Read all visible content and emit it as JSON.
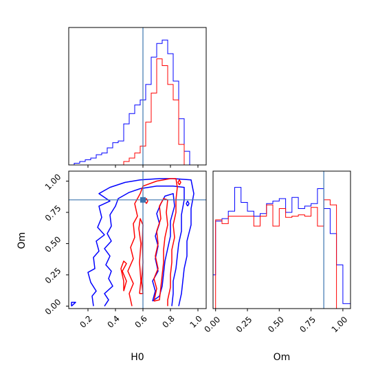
{
  "chart_data": {
    "type": "corner",
    "colors": {
      "blue": "#0000ff",
      "red": "#ff0000",
      "truth": "#3b75af"
    },
    "truth": {
      "H0": 0.6,
      "Om": 0.85
    },
    "panels": [
      {
        "name": "hist-H0",
        "type": "histogram",
        "xlim": [
          0.06,
          1.06
        ],
        "bin_edges": [
          0.06,
          0.1,
          0.14,
          0.18,
          0.22,
          0.26,
          0.3,
          0.34,
          0.38,
          0.42,
          0.46,
          0.5,
          0.54,
          0.58,
          0.62,
          0.66,
          0.7,
          0.74,
          0.78,
          0.82,
          0.86,
          0.9,
          0.94
        ],
        "series": [
          {
            "color": "blue",
            "values": [
              0,
              1,
              2,
              3,
              4,
              6,
              7,
              10,
              13,
              14,
              24,
              30,
              35,
              38,
              47,
              63,
              71,
              73,
              65,
              49,
              27,
              8
            ]
          },
          {
            "color": "red",
            "values": [
              0,
              0,
              0,
              0,
              0,
              0,
              0,
              0,
              0,
              0,
              2,
              4,
              7,
              11,
              25,
              42,
              62,
              58,
              47,
              38,
              12,
              0
            ]
          }
        ]
      },
      {
        "name": "contour-H0-Om",
        "type": "contour",
        "xlabel": "H0",
        "ylabel": "Om",
        "xlim": [
          0.06,
          1.06
        ],
        "ylim": [
          -0.02,
          1.08
        ],
        "xticks": [
          "0.2",
          "0.4",
          "0.6",
          "0.8",
          "1.0"
        ],
        "xtick_values": [
          0.2,
          0.4,
          0.6,
          0.8,
          1.0
        ],
        "yticks": [
          "0.00",
          "0.25",
          "0.50",
          "0.75",
          "1.00"
        ],
        "ytick_values": [
          0.0,
          0.25,
          0.5,
          0.75,
          1.0
        ],
        "contours": [
          {
            "color": "blue",
            "points": [
              [
                0.08,
                0.0
              ],
              [
                0.11,
                0.03
              ],
              [
                0.08,
                0.03
              ],
              [
                0.08,
                0.0
              ]
            ]
          },
          {
            "color": "blue",
            "points": [
              [
                0.24,
                0.0
              ],
              [
                0.23,
                0.08
              ],
              [
                0.26,
                0.12
              ],
              [
                0.22,
                0.19
              ],
              [
                0.2,
                0.27
              ],
              [
                0.25,
                0.3
              ],
              [
                0.24,
                0.39
              ],
              [
                0.28,
                0.44
              ],
              [
                0.26,
                0.52
              ],
              [
                0.32,
                0.57
              ],
              [
                0.27,
                0.63
              ],
              [
                0.3,
                0.71
              ],
              [
                0.28,
                0.8
              ],
              [
                0.36,
                0.84
              ],
              [
                0.28,
                0.9
              ],
              [
                0.36,
                0.95
              ],
              [
                0.47,
                0.99
              ],
              [
                0.58,
                1.01
              ],
              [
                0.72,
                1.02
              ],
              [
                0.82,
                1.02
              ],
              [
                0.95,
                1.01
              ],
              [
                0.97,
                0.9
              ],
              [
                0.95,
                0.78
              ],
              [
                0.95,
                0.65
              ],
              [
                0.92,
                0.52
              ],
              [
                0.92,
                0.4
              ],
              [
                0.9,
                0.3
              ],
              [
                0.89,
                0.2
              ],
              [
                0.88,
                0.1
              ],
              [
                0.86,
                0.0
              ]
            ]
          },
          {
            "color": "blue",
            "points": [
              [
                0.32,
                0.0
              ],
              [
                0.35,
                0.05
              ],
              [
                0.32,
                0.1
              ],
              [
                0.38,
                0.16
              ],
              [
                0.35,
                0.22
              ],
              [
                0.37,
                0.28
              ],
              [
                0.33,
                0.33
              ],
              [
                0.36,
                0.4
              ],
              [
                0.32,
                0.46
              ],
              [
                0.37,
                0.52
              ],
              [
                0.34,
                0.58
              ],
              [
                0.37,
                0.64
              ],
              [
                0.36,
                0.73
              ],
              [
                0.4,
                0.8
              ],
              [
                0.42,
                0.86
              ],
              [
                0.5,
                0.91
              ],
              [
                0.58,
                0.94
              ],
              [
                0.7,
                0.96
              ],
              [
                0.82,
                0.96
              ],
              [
                0.9,
                0.95
              ],
              [
                0.9,
                0.85
              ],
              [
                0.88,
                0.73
              ],
              [
                0.88,
                0.6
              ],
              [
                0.86,
                0.5
              ],
              [
                0.85,
                0.4
              ],
              [
                0.84,
                0.3
              ],
              [
                0.82,
                0.2
              ],
              [
                0.82,
                0.1
              ],
              [
                0.81,
                0.0
              ]
            ]
          },
          {
            "color": "blue",
            "points": [
              [
                0.67,
                0.04
              ],
              [
                0.69,
                0.12
              ],
              [
                0.67,
                0.2
              ],
              [
                0.71,
                0.28
              ],
              [
                0.69,
                0.38
              ],
              [
                0.71,
                0.48
              ],
              [
                0.69,
                0.56
              ],
              [
                0.72,
                0.66
              ],
              [
                0.7,
                0.74
              ],
              [
                0.73,
                0.82
              ],
              [
                0.76,
                0.88
              ],
              [
                0.82,
                0.9
              ],
              [
                0.83,
                0.8
              ],
              [
                0.8,
                0.68
              ],
              [
                0.8,
                0.56
              ],
              [
                0.78,
                0.46
              ],
              [
                0.76,
                0.36
              ],
              [
                0.75,
                0.26
              ],
              [
                0.74,
                0.16
              ],
              [
                0.72,
                0.08
              ],
              [
                0.67,
                0.04
              ]
            ]
          },
          {
            "color": "blue",
            "points": [
              [
                0.925,
                0.8
              ],
              [
                0.935,
                0.82
              ],
              [
                0.925,
                0.84
              ],
              [
                0.915,
                0.82
              ],
              [
                0.925,
                0.8
              ]
            ]
          },
          {
            "color": "red",
            "points": [
              [
                0.52,
                0.0
              ],
              [
                0.5,
                0.1
              ],
              [
                0.53,
                0.18
              ],
              [
                0.49,
                0.28
              ],
              [
                0.53,
                0.38
              ],
              [
                0.51,
                0.47
              ],
              [
                0.54,
                0.55
              ],
              [
                0.53,
                0.66
              ],
              [
                0.56,
                0.72
              ],
              [
                0.54,
                0.82
              ],
              [
                0.58,
                0.9
              ],
              [
                0.6,
                0.96
              ],
              [
                0.7,
                1.0
              ],
              [
                0.8,
                1.02
              ],
              [
                0.84,
                1.02
              ],
              [
                0.85,
                0.95
              ],
              [
                0.84,
                0.85
              ],
              [
                0.84,
                0.75
              ],
              [
                0.82,
                0.65
              ],
              [
                0.83,
                0.55
              ],
              [
                0.81,
                0.45
              ],
              [
                0.81,
                0.35
              ],
              [
                0.8,
                0.25
              ],
              [
                0.8,
                0.15
              ],
              [
                0.78,
                0.05
              ],
              [
                0.78,
                0.0
              ]
            ]
          },
          {
            "color": "red",
            "points": [
              [
                0.46,
                0.12
              ],
              [
                0.48,
                0.2
              ],
              [
                0.45,
                0.28
              ],
              [
                0.48,
                0.34
              ],
              [
                0.46,
                0.36
              ],
              [
                0.44,
                0.3
              ],
              [
                0.46,
                0.2
              ],
              [
                0.46,
                0.12
              ]
            ]
          },
          {
            "color": "red",
            "points": [
              [
                0.68,
                0.04
              ],
              [
                0.7,
                0.14
              ],
              [
                0.68,
                0.22
              ],
              [
                0.71,
                0.3
              ],
              [
                0.69,
                0.4
              ],
              [
                0.71,
                0.5
              ],
              [
                0.7,
                0.6
              ],
              [
                0.73,
                0.7
              ],
              [
                0.72,
                0.8
              ],
              [
                0.75,
                0.86
              ],
              [
                0.78,
                0.85
              ],
              [
                0.77,
                0.75
              ],
              [
                0.78,
                0.65
              ],
              [
                0.76,
                0.55
              ],
              [
                0.75,
                0.45
              ],
              [
                0.75,
                0.35
              ],
              [
                0.74,
                0.25
              ],
              [
                0.73,
                0.15
              ],
              [
                0.72,
                0.05
              ],
              [
                0.68,
                0.04
              ]
            ]
          },
          {
            "color": "red",
            "points": [
              [
                0.575,
                0.1
              ],
              [
                0.585,
                0.2
              ],
              [
                0.575,
                0.35
              ],
              [
                0.585,
                0.5
              ],
              [
                0.57,
                0.62
              ],
              [
                0.58,
                0.7
              ],
              [
                0.6,
                0.65
              ],
              [
                0.595,
                0.5
              ],
              [
                0.6,
                0.35
              ],
              [
                0.59,
                0.2
              ],
              [
                0.6,
                0.1
              ],
              [
                0.575,
                0.1
              ]
            ]
          },
          {
            "color": "red",
            "points": [
              [
                0.625,
                0.82
              ],
              [
                0.635,
                0.84
              ],
              [
                0.625,
                0.86
              ],
              [
                0.615,
                0.84
              ],
              [
                0.625,
                0.82
              ]
            ]
          },
          {
            "color": "red",
            "points": [
              [
                0.865,
                0.97
              ],
              [
                0.875,
                0.99
              ],
              [
                0.865,
                1.01
              ],
              [
                0.855,
                0.99
              ],
              [
                0.865,
                0.97
              ]
            ]
          }
        ]
      },
      {
        "name": "hist-Om",
        "type": "histogram",
        "xlabel": "Om",
        "xlim": [
          -0.02,
          1.06
        ],
        "xticks": [
          "0.00",
          "0.25",
          "0.50",
          "0.75",
          "1.00"
        ],
        "xtick_values": [
          0.0,
          0.25,
          0.5,
          0.75,
          1.0
        ],
        "bin_edges": [
          -0.02,
          0.0,
          0.05,
          0.1,
          0.15,
          0.2,
          0.25,
          0.3,
          0.35,
          0.4,
          0.45,
          0.5,
          0.55,
          0.6,
          0.65,
          0.7,
          0.75,
          0.8,
          0.85,
          0.9,
          0.95,
          1.0,
          1.06
        ],
        "series": [
          {
            "color": "blue",
            "values": [
              0.27,
              0.7,
              0.72,
              0.78,
              0.97,
              0.85,
              0.78,
              0.74,
              0.76,
              0.84,
              0.86,
              0.88,
              0.77,
              0.89,
              0.8,
              0.82,
              0.84,
              0.96,
              0.8,
              0.6,
              0.35,
              0.04
            ]
          },
          {
            "color": "red",
            "values": [
              0.0,
              0.71,
              0.68,
              0.74,
              0.74,
              0.74,
              0.74,
              0.66,
              0.74,
              0.83,
              0.66,
              0.8,
              0.73,
              0.74,
              0.75,
              0.74,
              0.81,
              0.66,
              0.87,
              0.83,
              0.0,
              0.0
            ]
          }
        ]
      }
    ]
  }
}
